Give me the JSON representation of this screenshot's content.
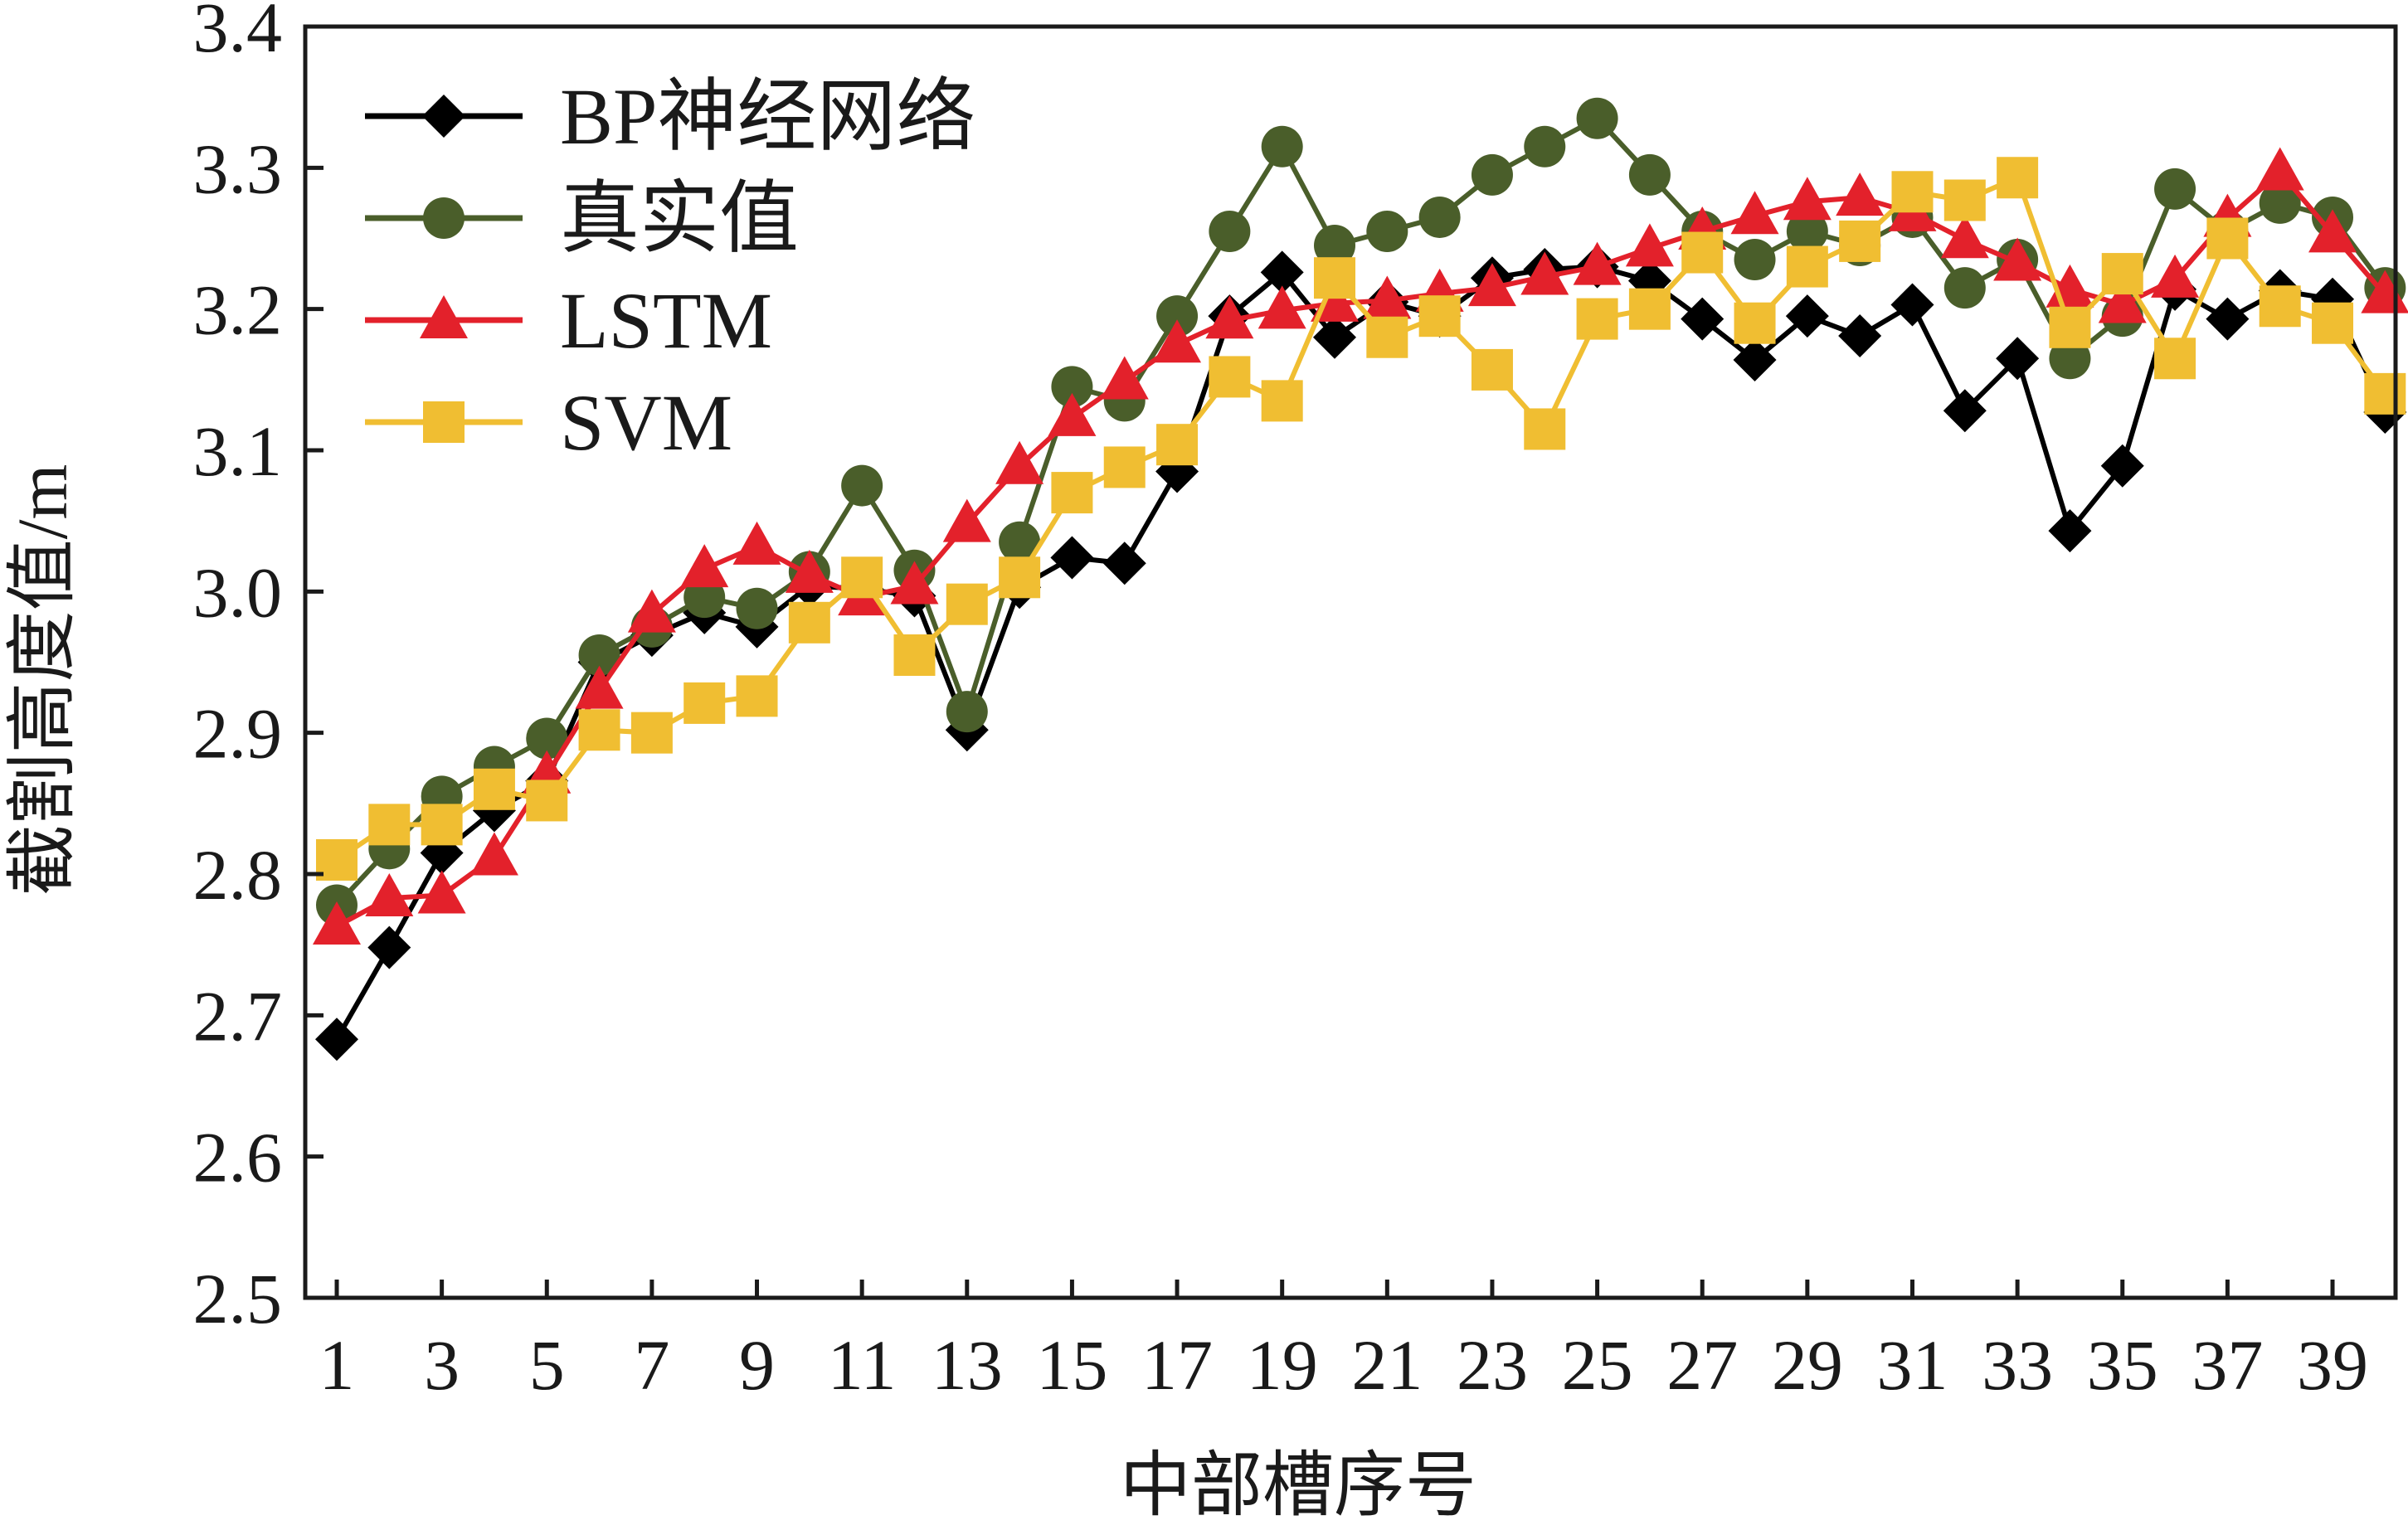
{
  "chart_data": {
    "type": "line",
    "xlabel": "中部槽序号",
    "ylabel": "截割高度值/m",
    "xlim": [
      0.4,
      40.2
    ],
    "ylim": [
      2.5,
      3.4
    ],
    "x_tick_labels": [
      "1",
      "3",
      "5",
      "7",
      "9",
      "11",
      "13",
      "15",
      "17",
      "19",
      "21",
      "23",
      "25",
      "27",
      "29",
      "31",
      "33",
      "35",
      "37",
      "39"
    ],
    "y_tick_labels": [
      "2.5",
      "2.6",
      "2.7",
      "2.8",
      "2.9",
      "3.0",
      "3.1",
      "3.2",
      "3.3",
      "3.4"
    ],
    "x": [
      1,
      2,
      3,
      4,
      5,
      6,
      7,
      8,
      9,
      10,
      11,
      12,
      13,
      14,
      15,
      16,
      17,
      18,
      19,
      20,
      21,
      22,
      23,
      24,
      25,
      26,
      27,
      28,
      29,
      30,
      31,
      32,
      33,
      34,
      35,
      36,
      37,
      38,
      39,
      40
    ],
    "legend_position": "top-left",
    "grid": false,
    "series": [
      {
        "name": "BP神经网络",
        "color": "#000000",
        "marker": "diamond",
        "values": [
          2.683,
          2.748,
          2.815,
          2.845,
          2.866,
          2.95,
          2.969,
          2.985,
          2.975,
          3.004,
          3.002,
          2.997,
          2.902,
          3.003,
          3.024,
          3.02,
          3.085,
          3.195,
          3.226,
          3.18,
          3.205,
          3.195,
          3.222,
          3.228,
          3.23,
          3.22,
          3.193,
          3.164,
          3.195,
          3.181,
          3.203,
          3.128,
          3.165,
          3.043,
          3.089,
          3.214,
          3.193,
          3.213,
          3.207,
          3.127
        ]
      },
      {
        "name": "真实值",
        "color": "#4a5e2a",
        "marker": "circle",
        "values": [
          2.778,
          2.818,
          2.855,
          2.876,
          2.896,
          2.955,
          2.975,
          2.996,
          2.988,
          3.014,
          3.075,
          3.015,
          2.915,
          3.035,
          3.145,
          3.135,
          3.195,
          3.255,
          3.315,
          3.245,
          3.255,
          3.265,
          3.295,
          3.315,
          3.335,
          3.295,
          3.255,
          3.235,
          3.255,
          3.245,
          3.265,
          3.215,
          3.235,
          3.165,
          3.195,
          3.285,
          3.255,
          3.275,
          3.265,
          3.215
        ]
      },
      {
        "name": "LSTM",
        "color": "#e3212b",
        "marker": "triangle",
        "values": [
          2.763,
          2.783,
          2.785,
          2.812,
          2.87,
          2.93,
          2.984,
          3.016,
          3.032,
          3.012,
          2.996,
          3.004,
          3.048,
          3.089,
          3.123,
          3.149,
          3.175,
          3.192,
          3.199,
          3.204,
          3.206,
          3.211,
          3.215,
          3.223,
          3.23,
          3.243,
          3.255,
          3.266,
          3.276,
          3.279,
          3.268,
          3.249,
          3.233,
          3.214,
          3.203,
          3.221,
          3.264,
          3.297,
          3.253,
          3.21
        ]
      },
      {
        "name": "SVM",
        "color": "#f0be32",
        "marker": "square",
        "values": [
          2.81,
          2.835,
          2.835,
          2.86,
          2.852,
          2.902,
          2.9,
          2.921,
          2.926,
          2.978,
          3.01,
          2.955,
          2.991,
          3.01,
          3.07,
          3.088,
          3.104,
          3.152,
          3.135,
          3.222,
          3.18,
          3.195,
          3.157,
          3.115,
          3.193,
          3.2,
          3.24,
          3.19,
          3.23,
          3.248,
          3.283,
          3.277,
          3.293,
          3.187,
          3.225,
          3.165,
          3.25,
          3.202,
          3.19,
          3.14
        ]
      }
    ]
  }
}
